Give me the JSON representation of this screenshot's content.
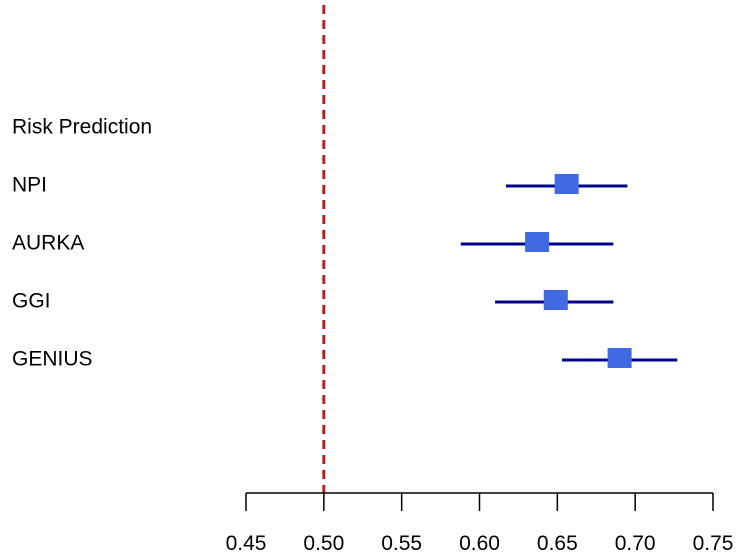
{
  "chart_data": {
    "type": "forest",
    "header": "Risk Prediction",
    "series": [
      {
        "name": "NPI",
        "estimate": 0.656,
        "lower": 0.617,
        "upper": 0.695
      },
      {
        "name": "AURKA",
        "estimate": 0.637,
        "lower": 0.588,
        "upper": 0.686
      },
      {
        "name": "GGI",
        "estimate": 0.649,
        "lower": 0.61,
        "upper": 0.686
      },
      {
        "name": "GENIUS",
        "estimate": 0.69,
        "lower": 0.653,
        "upper": 0.727
      }
    ],
    "reference_line": 0.5,
    "xlim": [
      0.45,
      0.75
    ],
    "xticks": [
      "0.45",
      "0.50",
      "0.55",
      "0.60",
      "0.65",
      "0.70",
      "0.75"
    ],
    "grid": false,
    "colors": {
      "interval": "#00008b",
      "marker": "#4169e1",
      "reference": "#b22222"
    }
  }
}
